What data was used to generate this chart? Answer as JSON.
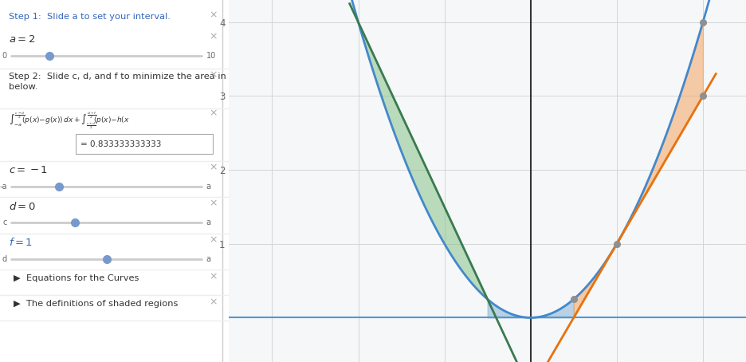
{
  "a": 2,
  "c": -1,
  "d": 0,
  "f": 1,
  "xlim": [
    -3.5,
    2.5
  ],
  "ylim": [
    -0.6,
    4.3
  ],
  "xticks": [
    -3,
    -2,
    -1,
    0,
    1,
    2
  ],
  "yticks": [
    1,
    2,
    3,
    4
  ],
  "graph_bg": "#f5f7f9",
  "grid_color": "#d5d5d5",
  "parabola_color": "#4488cc",
  "green_line_color": "#3a7a50",
  "orange_line_color": "#e8720c",
  "green_fill": "#7fbf7f",
  "orange_fill": "#f4a460",
  "blue_fill": "#90b8d8",
  "green_alpha": 0.5,
  "orange_alpha": 0.55,
  "blue_alpha": 0.6,
  "left_bg": "#ffffff",
  "slider_track": "#cccccc",
  "slider_dot": "#7799cc",
  "text_blue": "#3366bb",
  "text_dark": "#333333",
  "text_gray": "#999999",
  "sep_color": "#eeeeee",
  "xaxis_color": "#5599cc",
  "yaxis_color": "#333333",
  "dot_color": "#909090",
  "lpf": 0.307
}
